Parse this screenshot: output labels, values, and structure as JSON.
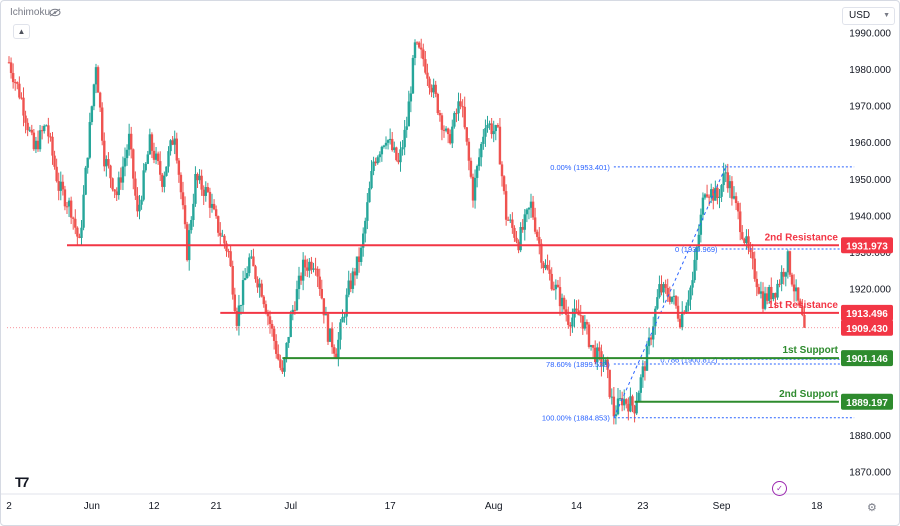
{
  "toolbar": {
    "indicator_label": "Ichimoku",
    "currency": "USD"
  },
  "colors": {
    "up": "#26a69a",
    "down": "#ef5350",
    "resistance": "#f23645",
    "support": "#2e8b2e",
    "fib": "#2962ff",
    "last_price": "#f23645"
  },
  "chart_data": {
    "type": "candlestick",
    "title": "",
    "y_axis": {
      "ylim": [
        1864,
        1996
      ],
      "ticks": [
        "1870.000",
        "1880.000",
        "1890.000",
        "1900.000",
        "1910.000",
        "1920.000",
        "1930.000",
        "1940.000",
        "1950.000",
        "1960.000",
        "1970.000",
        "1980.000",
        "1990.000"
      ],
      "tick_values": [
        1870,
        1880,
        1890,
        1900,
        1910,
        1920,
        1930,
        1940,
        1950,
        1960,
        1970,
        1980,
        1990
      ]
    },
    "x_axis": {
      "ticks": [
        "2",
        "Jun",
        "12",
        "21",
        "Jul",
        "17",
        "Aug",
        "14",
        "23",
        "Sep",
        "18"
      ],
      "tick_index": [
        0,
        20,
        35,
        50,
        68,
        92,
        117,
        137,
        153,
        172,
        195
      ],
      "range_index": [
        0,
        210
      ]
    },
    "price_path": [
      {
        "i": 0,
        "p": 1982
      },
      {
        "i": 3,
        "p": 1972
      },
      {
        "i": 6,
        "p": 1958
      },
      {
        "i": 9,
        "p": 1965
      },
      {
        "i": 12,
        "p": 1948
      },
      {
        "i": 15,
        "p": 1942
      },
      {
        "i": 17,
        "p": 1932
      },
      {
        "i": 19,
        "p": 1958
      },
      {
        "i": 21,
        "p": 1982
      },
      {
        "i": 23,
        "p": 1956
      },
      {
        "i": 26,
        "p": 1946
      },
      {
        "i": 29,
        "p": 1961
      },
      {
        "i": 31,
        "p": 1940
      },
      {
        "i": 34,
        "p": 1960
      },
      {
        "i": 37,
        "p": 1950
      },
      {
        "i": 40,
        "p": 1963
      },
      {
        "i": 43,
        "p": 1930
      },
      {
        "i": 45,
        "p": 1950
      },
      {
        "i": 48,
        "p": 1946
      },
      {
        "i": 50,
        "p": 1938
      },
      {
        "i": 53,
        "p": 1930
      },
      {
        "i": 55,
        "p": 1912
      },
      {
        "i": 58,
        "p": 1928
      },
      {
        "i": 61,
        "p": 1920
      },
      {
        "i": 64,
        "p": 1906
      },
      {
        "i": 66,
        "p": 1896
      },
      {
        "i": 68,
        "p": 1912
      },
      {
        "i": 71,
        "p": 1926
      },
      {
        "i": 74,
        "p": 1928
      },
      {
        "i": 77,
        "p": 1908
      },
      {
        "i": 79,
        "p": 1903
      },
      {
        "i": 82,
        "p": 1920
      },
      {
        "i": 85,
        "p": 1930
      },
      {
        "i": 88,
        "p": 1955
      },
      {
        "i": 91,
        "p": 1962
      },
      {
        "i": 94,
        "p": 1954
      },
      {
        "i": 96,
        "p": 1965
      },
      {
        "i": 98,
        "p": 1986
      },
      {
        "i": 100,
        "p": 1983
      },
      {
        "i": 103,
        "p": 1972
      },
      {
        "i": 106,
        "p": 1960
      },
      {
        "i": 109,
        "p": 1972
      },
      {
        "i": 112,
        "p": 1946
      },
      {
        "i": 115,
        "p": 1966
      },
      {
        "i": 118,
        "p": 1962
      },
      {
        "i": 120,
        "p": 1940
      },
      {
        "i": 123,
        "p": 1933
      },
      {
        "i": 126,
        "p": 1943
      },
      {
        "i": 129,
        "p": 1927
      },
      {
        "i": 132,
        "p": 1920
      },
      {
        "i": 135,
        "p": 1912
      },
      {
        "i": 138,
        "p": 1913
      },
      {
        "i": 141,
        "p": 1903
      },
      {
        "i": 144,
        "p": 1899
      },
      {
        "i": 146,
        "p": 1886
      },
      {
        "i": 148,
        "p": 1890
      },
      {
        "i": 151,
        "p": 1888
      },
      {
        "i": 154,
        "p": 1902
      },
      {
        "i": 157,
        "p": 1920
      },
      {
        "i": 160,
        "p": 1918
      },
      {
        "i": 162,
        "p": 1912
      },
      {
        "i": 165,
        "p": 1922
      },
      {
        "i": 168,
        "p": 1948
      },
      {
        "i": 171,
        "p": 1945
      },
      {
        "i": 173,
        "p": 1952
      },
      {
        "i": 176,
        "p": 1940
      },
      {
        "i": 179,
        "p": 1928
      },
      {
        "i": 182,
        "p": 1917
      },
      {
        "i": 185,
        "p": 1920
      },
      {
        "i": 188,
        "p": 1928
      },
      {
        "i": 190,
        "p": 1918
      },
      {
        "i": 192,
        "p": 1909.43
      }
    ],
    "horizontal_levels": [
      {
        "label": "2nd Resistance",
        "value": 1931.973,
        "tag": "1931.973",
        "kind": "resistance",
        "from_index": 14
      },
      {
        "label": "1st Resistance",
        "value": 1913.496,
        "tag": "1913.496",
        "kind": "resistance",
        "from_index": 51
      },
      {
        "label": "1st Support",
        "value": 1901.146,
        "tag": "1901.146",
        "kind": "support",
        "from_index": 66
      },
      {
        "label": "2nd Support",
        "value": 1889.197,
        "tag": "1889.197",
        "kind": "support",
        "from_index": 151
      }
    ],
    "last_price": {
      "value": 1909.43,
      "tag": "1909.430"
    },
    "fib_levels": [
      {
        "label": "0.00% (1953.401)",
        "value": 1953.401,
        "from_index": 146,
        "to_index": 204
      },
      {
        "label": "0 (1930.969)",
        "value": 1930.969,
        "from_index": 172,
        "to_index": 204
      },
      {
        "label": "0.786 (1900.812)",
        "value": 1900.812,
        "from_index": 172,
        "to_index": 204
      },
      {
        "label": "78.60% (1899.523)",
        "value": 1899.523,
        "from_index": 146,
        "to_index": 204
      },
      {
        "label": "100.00% (1884.853)",
        "value": 1884.853,
        "from_index": 146,
        "to_index": 204
      }
    ]
  }
}
